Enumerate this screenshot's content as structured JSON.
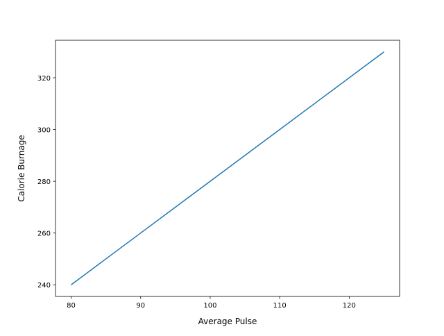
{
  "chart_data": {
    "type": "line",
    "title": "",
    "xlabel": "Average Pulse",
    "ylabel": "Calorie Burnage",
    "xlim": [
      77.75,
      127.25
    ],
    "ylim": [
      235.5,
      334.5
    ],
    "xticks": [
      80,
      90,
      100,
      110,
      120
    ],
    "yticks": [
      240,
      260,
      280,
      300,
      320
    ],
    "grid": false,
    "series": [
      {
        "color": "#1f77b4",
        "x": [
          80,
          85,
          90,
          95,
          100,
          105,
          110,
          115,
          120,
          125
        ],
        "y": [
          240,
          250,
          260,
          270,
          280,
          290,
          300,
          310,
          320,
          330
        ]
      }
    ]
  }
}
